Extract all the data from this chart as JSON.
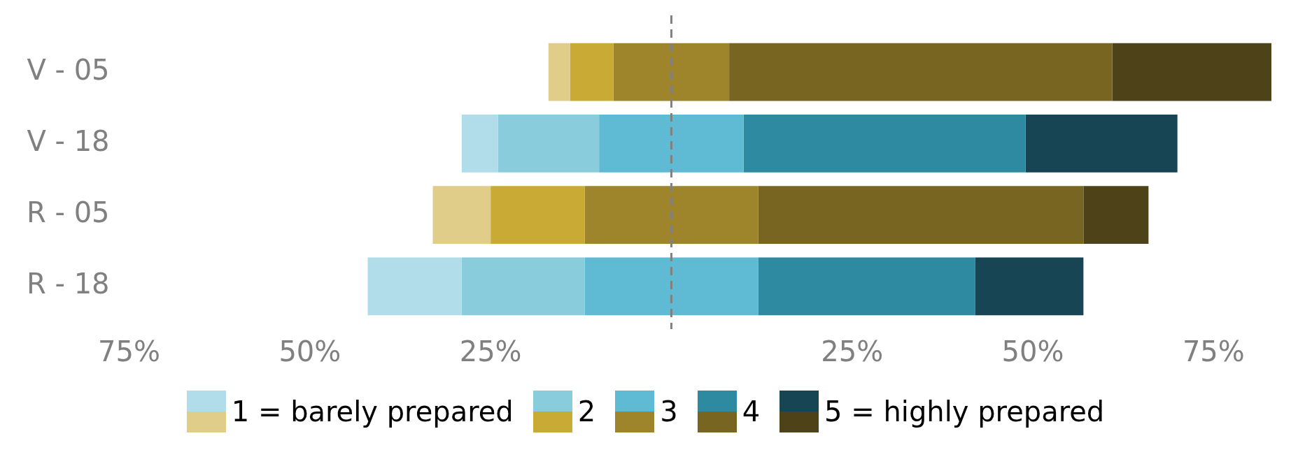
{
  "chart_data": {
    "type": "bar",
    "orientation": "horizontal",
    "categories": [
      "V - 05",
      "V - 18",
      "R - 05",
      "R - 18"
    ],
    "series": [
      {
        "name": "1 = barely prepared",
        "colors": [
          "#e0cd8a",
          "#b0dde9",
          "#e0cd8a",
          "#b0dde9"
        ],
        "base": [
          -17,
          -29,
          -33,
          -42
        ],
        "values": [
          3,
          5,
          8,
          13
        ]
      },
      {
        "name": "2",
        "colors": [
          "#c8aa35",
          "#89ccdc",
          "#c8aa35",
          "#89ccdc"
        ],
        "base": [
          -14,
          -24,
          -25,
          -29
        ],
        "values": [
          6,
          14,
          13,
          17
        ]
      },
      {
        "name": "3",
        "colors": [
          "#9e852c",
          "#5fbad3",
          "#9e852c",
          "#5fbad3"
        ],
        "base": [
          -8,
          -10,
          -12,
          -12
        ],
        "values": [
          16,
          20,
          24,
          24
        ]
      },
      {
        "name": "4",
        "colors": [
          "#776521",
          "#2d8aa0",
          "#776521",
          "#2d8aa0"
        ],
        "base": [
          8,
          10,
          12,
          12
        ],
        "values": [
          53,
          39,
          45,
          30
        ]
      },
      {
        "name": "5 = highly prepared",
        "colors": [
          "#4e4318",
          "#174553",
          "#4e4318",
          "#174553"
        ],
        "base": [
          61,
          49,
          57,
          42
        ],
        "values": [
          22,
          21,
          9,
          15
        ]
      }
    ],
    "xlim": [
      -75,
      83
    ],
    "xticks": [
      {
        "value": -75,
        "label": "75%"
      },
      {
        "value": -50,
        "label": "50%"
      },
      {
        "value": -25,
        "label": "25%"
      },
      {
        "value": 25,
        "label": "25%"
      },
      {
        "value": 50,
        "label": "50%"
      },
      {
        "value": 75,
        "label": "75%"
      }
    ],
    "ref_lines": [
      {
        "axis": "x",
        "value": 0,
        "color": "#808080",
        "line_style": "dashed"
      }
    ],
    "grid": false,
    "legend": "bottom"
  }
}
